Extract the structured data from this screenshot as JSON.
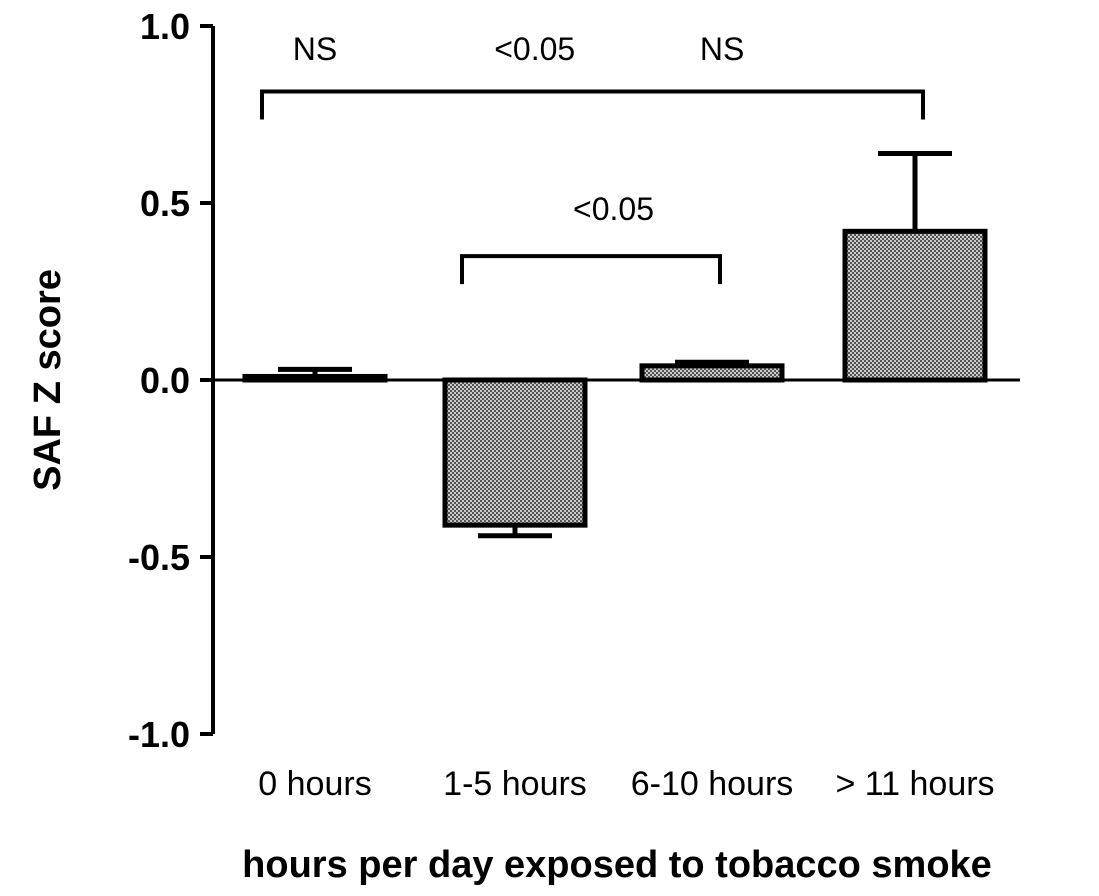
{
  "chart_data": {
    "type": "bar",
    "xlabel": "hours per day exposed to tobacco smoke",
    "ylabel": "SAF Z score",
    "ylim": [
      -1.0,
      1.0
    ],
    "yticks": [
      "1.0",
      "0.5",
      "0.0",
      "-0.5",
      "-1.0"
    ],
    "ytick_values": [
      1.0,
      0.5,
      0.0,
      -0.5,
      -1.0
    ],
    "categories": [
      "0 hours",
      "1-5 hours",
      "6-10 hours",
      "> 11 hours"
    ],
    "values": [
      0.01,
      -0.41,
      0.04,
      0.42
    ],
    "errors": [
      0.02,
      0.03,
      0.01,
      0.22
    ],
    "bar_fill": "crosshatch gray",
    "annotations": [
      {
        "from": 0,
        "to": 3,
        "level": 0.815,
        "labels": [
          "NS",
          "<0.05",
          "NS"
        ],
        "label_positions": [
          0,
          1.1,
          2.05
        ]
      },
      {
        "from": 1,
        "to": 2,
        "level": 0.35,
        "labels": [
          "<0.05"
        ],
        "label_positions": [
          1.5
        ]
      }
    ]
  }
}
